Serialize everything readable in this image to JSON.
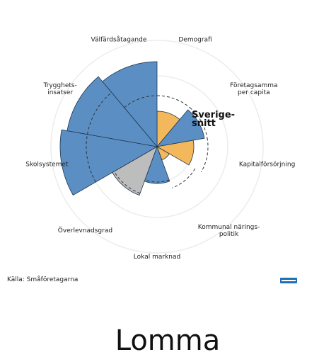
{
  "chart_data": {
    "type": "polar-area",
    "categories": [
      [
        "Demografi"
      ],
      [
        "Företagsamma",
        "per capita"
      ],
      [
        "Kapitalförsörjning"
      ],
      [
        "Kommunal närings-",
        "politik"
      ],
      [
        "Lokal marknad"
      ],
      [
        "Överlevnadsgrad"
      ],
      [
        "Skolsystemet"
      ],
      [
        "Trygghets-",
        "insatser"
      ],
      [
        "Välfärdsåtagande"
      ]
    ],
    "values": [
      50,
      68,
      52,
      20,
      52,
      73,
      137,
      129,
      120
    ],
    "colors": [
      "#f3b85c",
      "#5b8fc4",
      "#f3b85c",
      "#f3b85c",
      "#5b8fc4",
      "#bdbdbd",
      "#5b8fc4",
      "#5b8fc4",
      "#5b8fc4"
    ],
    "reference": {
      "name": [
        "Sverige-",
        "snitt"
      ],
      "values": [
        72,
        72,
        72,
        62,
        50,
        70,
        100,
        100,
        72
      ]
    },
    "rlim": [
      0,
      150
    ],
    "rticks": [
      50,
      100,
      150
    ],
    "grid": true,
    "source": "Källa: Småföretagarna",
    "title": "Lomma"
  }
}
